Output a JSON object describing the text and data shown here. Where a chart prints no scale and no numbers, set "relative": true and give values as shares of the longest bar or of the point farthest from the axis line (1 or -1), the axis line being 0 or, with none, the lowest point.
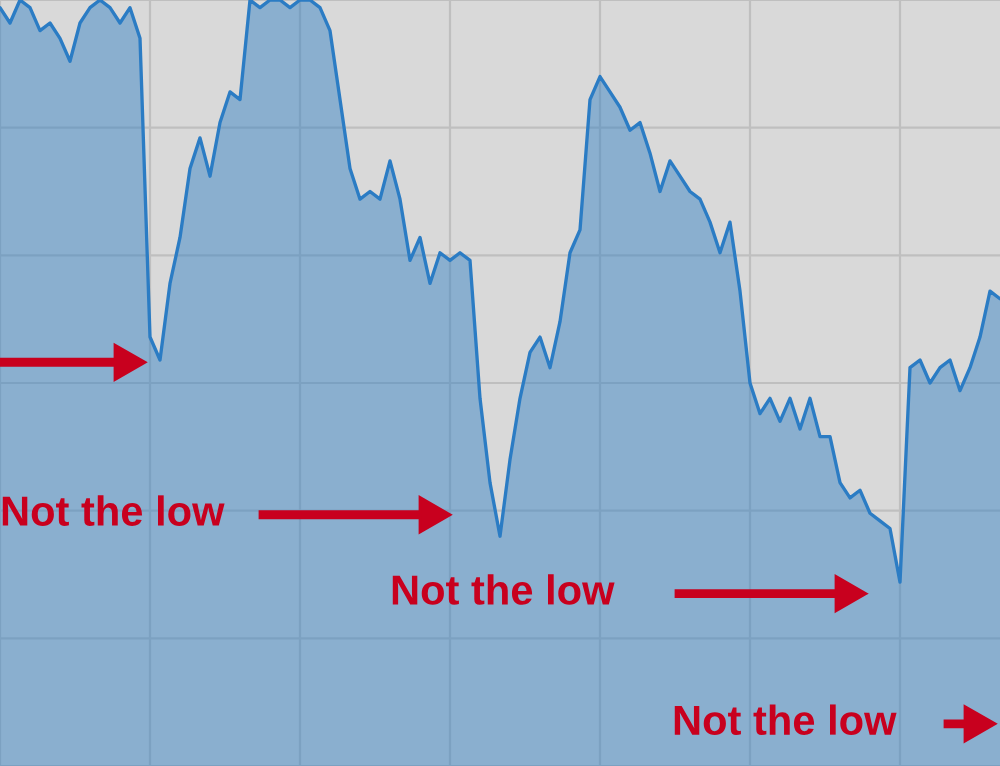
{
  "chart_data": {
    "type": "area",
    "relative": true,
    "grid": true,
    "color": "#2b7cc4",
    "categories": [
      null,
      null,
      null,
      null,
      null,
      null,
      null,
      null,
      null,
      null,
      null,
      null,
      null,
      null,
      null,
      null,
      null,
      null,
      null,
      null,
      null,
      null,
      null,
      null,
      null,
      null,
      null,
      null,
      null,
      null,
      null,
      null,
      null,
      null,
      null,
      null,
      null,
      null,
      null,
      null,
      null,
      null,
      null,
      null,
      null,
      null,
      null,
      null,
      null,
      null,
      null,
      null,
      null,
      null,
      null,
      null,
      null,
      null,
      null,
      null,
      null,
      null,
      null,
      null,
      null,
      null,
      null,
      null,
      null,
      null,
      null,
      null,
      null,
      null,
      null,
      null,
      null,
      null,
      null,
      null,
      null,
      null,
      null,
      null,
      null,
      null,
      null,
      null,
      null,
      null,
      null,
      null,
      null,
      null,
      null,
      null,
      null,
      null,
      null,
      null,
      null
    ],
    "values": [
      0.99,
      0.97,
      1,
      0.99,
      0.96,
      0.97,
      0.95,
      0.92,
      0.97,
      0.99,
      1,
      0.99,
      0.97,
      0.99,
      0.95,
      0.56,
      0.53,
      0.63,
      0.69,
      0.78,
      0.82,
      0.77,
      0.84,
      0.88,
      0.87,
      1,
      0.99,
      1,
      1,
      0.99,
      1,
      1,
      0.99,
      0.96,
      0.87,
      0.78,
      0.74,
      0.75,
      0.74,
      0.79,
      0.74,
      0.66,
      0.69,
      0.63,
      0.67,
      0.66,
      0.67,
      0.66,
      0.48,
      0.37,
      0.3,
      0.4,
      0.48,
      0.54,
      0.56,
      0.52,
      0.58,
      0.67,
      0.7,
      0.87,
      0.9,
      0.88,
      0.86,
      0.83,
      0.84,
      0.8,
      0.75,
      0.79,
      0.77,
      0.75,
      0.74,
      0.71,
      0.67,
      0.71,
      0.62,
      0.5,
      0.46,
      0.48,
      0.45,
      0.48,
      0.44,
      0.48,
      0.43,
      0.43,
      0.37,
      0.35,
      0.36,
      0.33,
      0.32,
      0.31,
      0.24,
      0.52,
      0.53,
      0.5,
      0.52,
      0.53,
      0.49,
      0.52,
      0.56,
      0.62,
      0.61
    ],
    "annotations": [
      "Not the low",
      "Not the low",
      "Not the low"
    ]
  }
}
